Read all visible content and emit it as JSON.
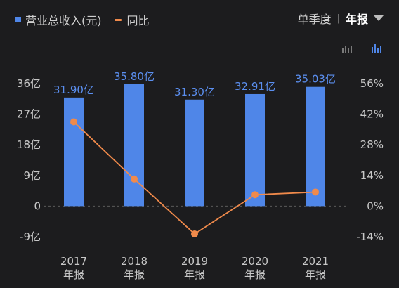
{
  "legend": {
    "bar_label": "营业总收入(元)",
    "line_label": "同比"
  },
  "period": {
    "quarter": "单季度",
    "separator": "|",
    "annual": "年报",
    "caret_icon": "triangle-down-icon"
  },
  "view_icons": {
    "line_view": "bar-line-chart-icon",
    "bar_view": "bar-chart-icon"
  },
  "colors": {
    "bar": "#4f86e8",
    "line": "#f08a4b",
    "bar_label": "#5b8ff0"
  },
  "chart_data": {
    "type": "bar",
    "categories": [
      "2017\n年报",
      "2018\n年报",
      "2019\n年报",
      "2020\n年报",
      "2021\n年报"
    ],
    "series": [
      {
        "name": "营业总收入(元)",
        "values": [
          31.9,
          35.8,
          31.3,
          32.91,
          35.03
        ],
        "labels": [
          "31.90亿",
          "35.80亿",
          "31.30亿",
          "32.91亿",
          "35.03亿"
        ]
      },
      {
        "name": "同比",
        "type": "line",
        "values": [
          38.5,
          12.4,
          -12.7,
          5.2,
          6.4
        ]
      }
    ],
    "y_left": {
      "ticks": [
        36,
        27,
        18,
        9,
        0,
        -9
      ],
      "tick_labels": [
        "36亿",
        "27亿",
        "18亿",
        "9亿",
        "0",
        "-9亿"
      ],
      "ylim": [
        -9,
        36
      ]
    },
    "y_right": {
      "ticks": [
        56,
        42,
        28,
        14,
        0,
        -14
      ],
      "tick_labels": [
        "56%",
        "42%",
        "28%",
        "14%",
        "0%",
        "-14%"
      ],
      "ylim": [
        -14,
        56
      ]
    },
    "zero_line": "dashed"
  }
}
